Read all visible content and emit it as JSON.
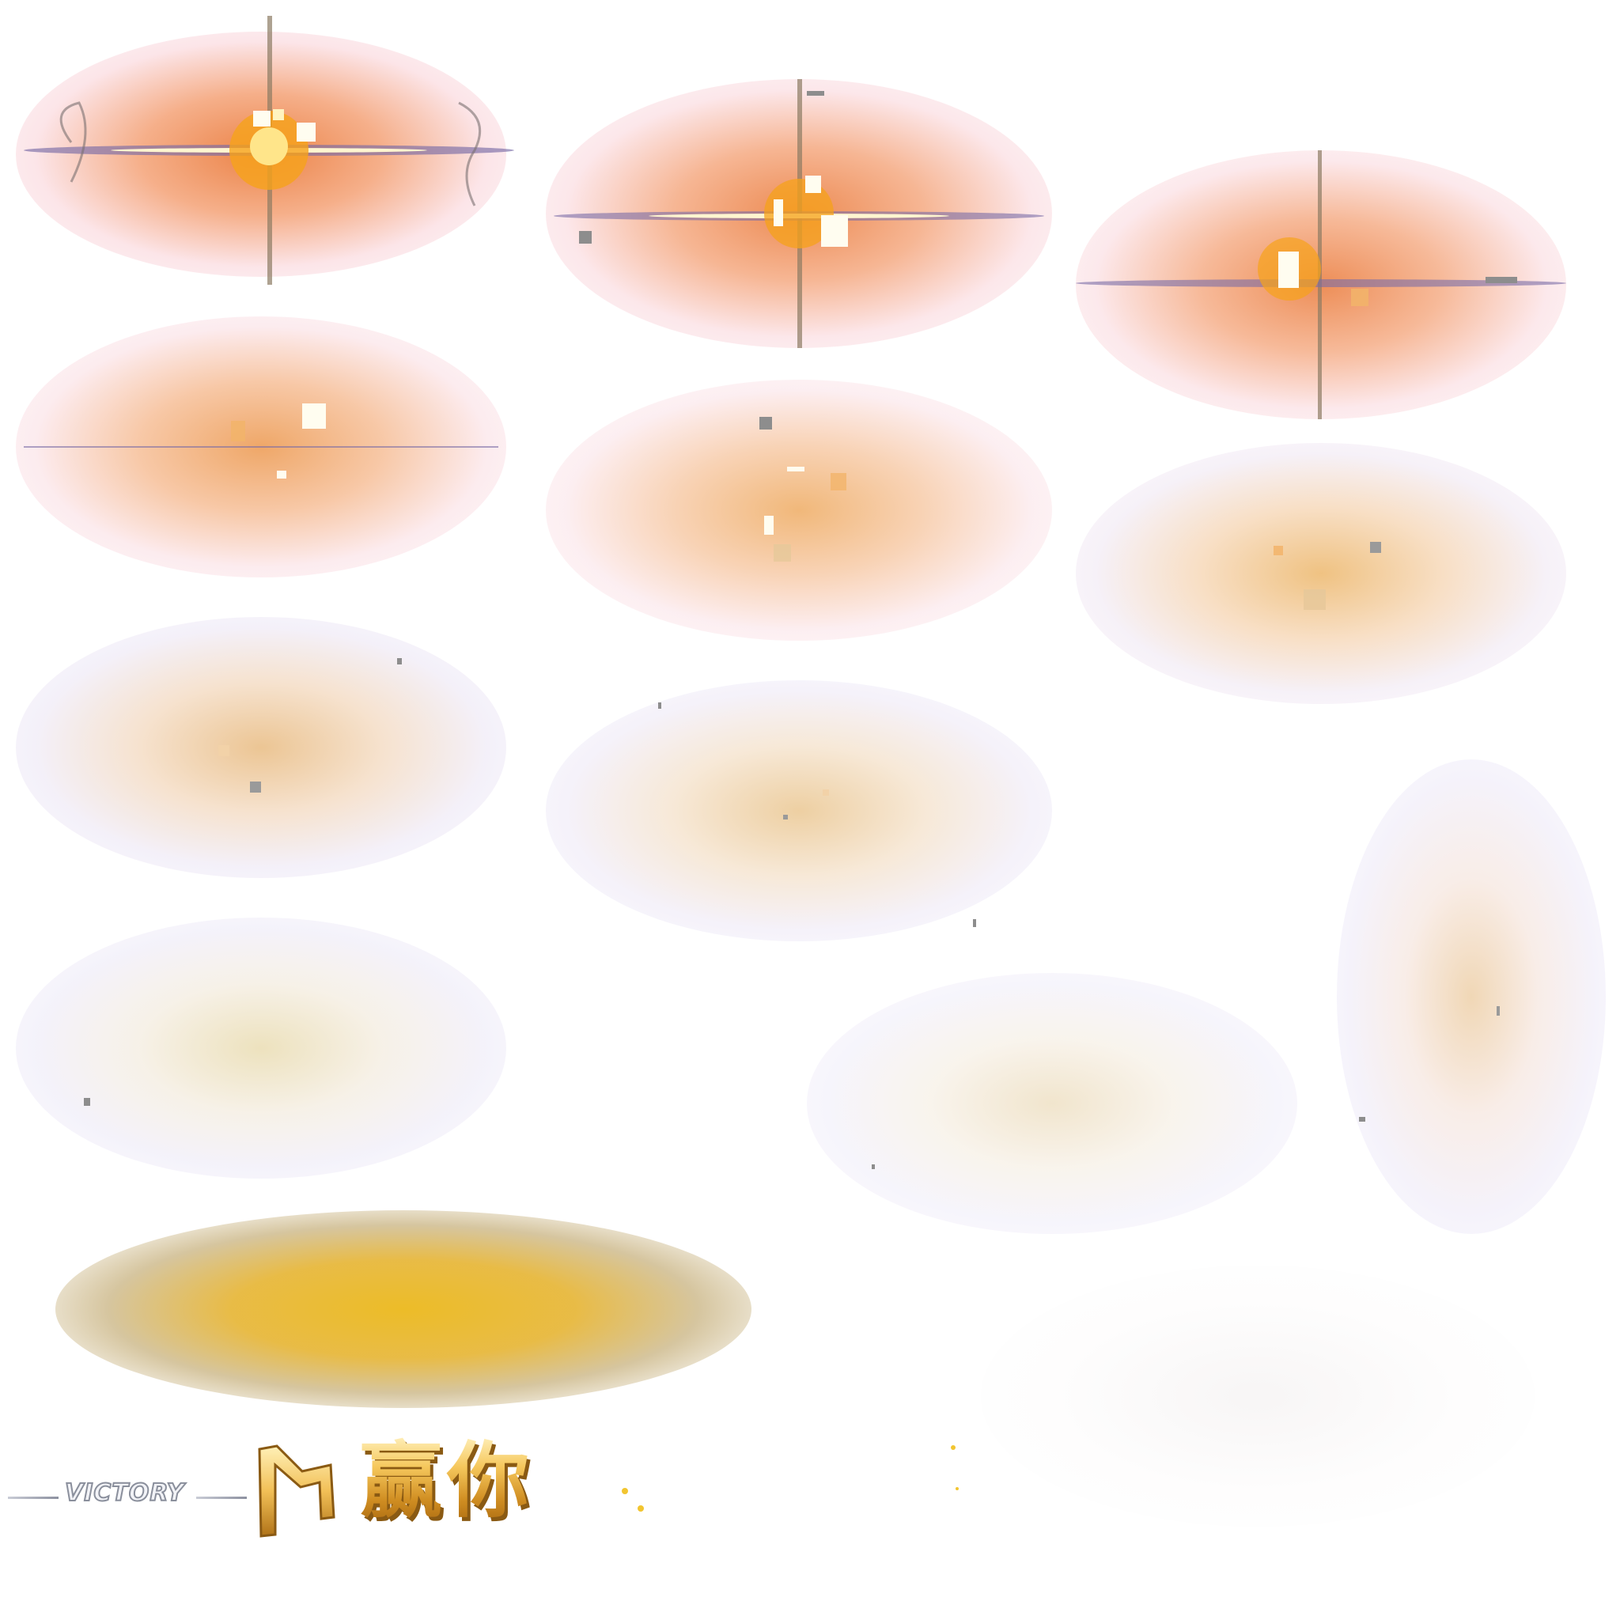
{
  "sprite_sheet": {
    "banner": {
      "victory_word": "VICTORY",
      "win_chars": "赢你"
    },
    "colors": {
      "flash_core": "#ffffff",
      "flash_orange": "#f0a020",
      "halo_orange": "#ef7a3c",
      "halo_pink": "#f6c2c6",
      "halo_lavender": "#e6e2f4",
      "streak_purple": "#7a6ca6",
      "shadow_gold": "#e6b42a",
      "banner_gold": "#f6c85d",
      "banner_silver": "#8a8f9c"
    },
    "frames": [
      {
        "name": "burst-frame-1",
        "intensity": 1.0,
        "streak": true,
        "cross": true
      },
      {
        "name": "burst-frame-2",
        "intensity": 0.95,
        "streak": true,
        "cross": true
      },
      {
        "name": "burst-frame-3",
        "intensity": 0.9,
        "streak": true,
        "cross": true
      },
      {
        "name": "burst-frame-4",
        "intensity": 0.8,
        "streak": true,
        "cross": false
      },
      {
        "name": "burst-frame-5",
        "intensity": 0.72,
        "streak": false,
        "cross": false
      },
      {
        "name": "burst-frame-6",
        "intensity": 0.62,
        "streak": false,
        "cross": false
      },
      {
        "name": "burst-frame-7",
        "intensity": 0.5,
        "streak": false,
        "cross": false
      },
      {
        "name": "burst-frame-8",
        "intensity": 0.4,
        "streak": false,
        "cross": false
      },
      {
        "name": "burst-frame-9",
        "intensity": 0.3,
        "streak": false,
        "cross": false
      },
      {
        "name": "burst-frame-10",
        "intensity": 0.22,
        "streak": false,
        "cross": false
      },
      {
        "name": "burst-frame-11",
        "intensity": 0.3,
        "streak": false,
        "cross": false
      }
    ]
  }
}
